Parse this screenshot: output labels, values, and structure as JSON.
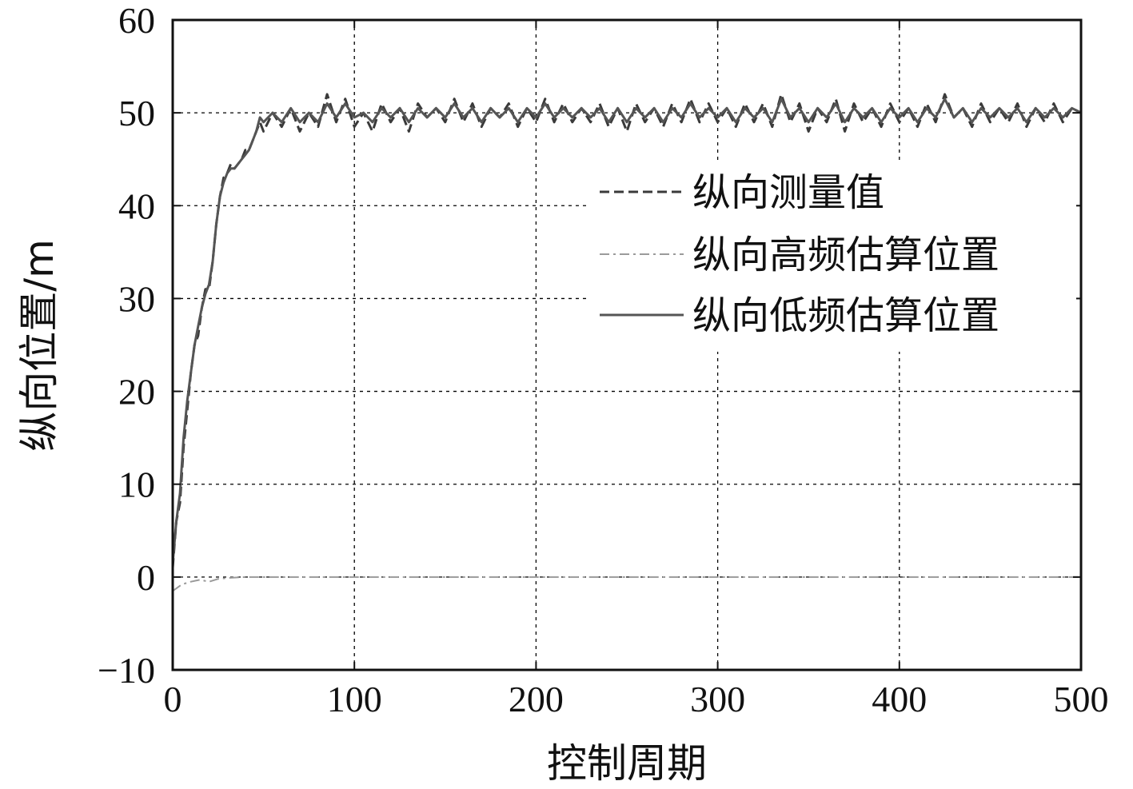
{
  "chart_data": {
    "type": "line",
    "xlabel": "控制周期",
    "ylabel": "纵向位置/m",
    "xlim": [
      0,
      500
    ],
    "ylim": [
      -10,
      60
    ],
    "xticks": [
      0,
      100,
      200,
      300,
      400,
      500
    ],
    "yticks": [
      -10,
      0,
      10,
      20,
      30,
      40,
      50,
      60
    ],
    "xtick_labels": [
      "0",
      "100",
      "200",
      "300",
      "400",
      "500"
    ],
    "ytick_labels": [
      "−10",
      "0",
      "10",
      "20",
      "30",
      "40",
      "50",
      "60"
    ],
    "grid": true,
    "legend_position": "top-right",
    "colors": {
      "measured": "#3a3a3a",
      "high_freq": "#9a9a9a",
      "low_freq": "#555555",
      "grid": "#000000",
      "frame": "#111111"
    },
    "series": [
      {
        "name": "纵向测量值",
        "style": "dashed",
        "points": [
          [
            0,
            1
          ],
          [
            2,
            6
          ],
          [
            4,
            8
          ],
          [
            6,
            14
          ],
          [
            8,
            18
          ],
          [
            10,
            22
          ],
          [
            12,
            25
          ],
          [
            14,
            26
          ],
          [
            16,
            29
          ],
          [
            18,
            31
          ],
          [
            20,
            31
          ],
          [
            22,
            34
          ],
          [
            24,
            38
          ],
          [
            26,
            41
          ],
          [
            28,
            43
          ],
          [
            30,
            43.5
          ],
          [
            32,
            44.5
          ],
          [
            34,
            44
          ],
          [
            36,
            44.5
          ],
          [
            38,
            45
          ],
          [
            40,
            46
          ],
          [
            42,
            46
          ],
          [
            44,
            47
          ],
          [
            46,
            48
          ],
          [
            48,
            49
          ],
          [
            50,
            48
          ],
          [
            55,
            50
          ],
          [
            60,
            48.5
          ],
          [
            65,
            50.5
          ],
          [
            70,
            48
          ],
          [
            75,
            50
          ],
          [
            80,
            48.5
          ],
          [
            85,
            52
          ],
          [
            90,
            49
          ],
          [
            95,
            51.5
          ],
          [
            100,
            48.5
          ],
          [
            105,
            50
          ],
          [
            110,
            48
          ],
          [
            115,
            51
          ],
          [
            120,
            49
          ],
          [
            125,
            50.5
          ],
          [
            130,
            48
          ],
          [
            135,
            51
          ],
          [
            140,
            49.5
          ],
          [
            145,
            50.5
          ],
          [
            150,
            49
          ],
          [
            155,
            51.5
          ],
          [
            160,
            49
          ],
          [
            165,
            51
          ],
          [
            170,
            48.5
          ],
          [
            175,
            50.5
          ],
          [
            180,
            49.5
          ],
          [
            185,
            51
          ],
          [
            190,
            48.5
          ],
          [
            195,
            50.5
          ],
          [
            200,
            49
          ],
          [
            205,
            51.5
          ],
          [
            210,
            49
          ],
          [
            215,
            51
          ],
          [
            220,
            49
          ],
          [
            225,
            50.5
          ],
          [
            230,
            49
          ],
          [
            235,
            51
          ],
          [
            240,
            48.5
          ],
          [
            245,
            50.5
          ],
          [
            250,
            48
          ],
          [
            255,
            51
          ],
          [
            260,
            49
          ],
          [
            265,
            50.5
          ],
          [
            270,
            48.5
          ],
          [
            275,
            51
          ],
          [
            280,
            49
          ],
          [
            285,
            51.5
          ],
          [
            290,
            49
          ],
          [
            295,
            51
          ],
          [
            300,
            49
          ],
          [
            305,
            50.5
          ],
          [
            310,
            48.5
          ],
          [
            315,
            51
          ],
          [
            320,
            49
          ],
          [
            325,
            51
          ],
          [
            330,
            48.5
          ],
          [
            335,
            52
          ],
          [
            340,
            49
          ],
          [
            345,
            51
          ],
          [
            350,
            48
          ],
          [
            355,
            50.5
          ],
          [
            360,
            49
          ],
          [
            365,
            51.5
          ],
          [
            370,
            48
          ],
          [
            375,
            51
          ],
          [
            380,
            49
          ],
          [
            385,
            50.5
          ],
          [
            390,
            48.5
          ],
          [
            395,
            51
          ],
          [
            400,
            49
          ],
          [
            405,
            50.5
          ],
          [
            410,
            48.5
          ],
          [
            415,
            51
          ],
          [
            420,
            49
          ],
          [
            425,
            52
          ],
          [
            430,
            49.5
          ],
          [
            435,
            50.5
          ],
          [
            440,
            48.5
          ],
          [
            445,
            51
          ],
          [
            450,
            49
          ],
          [
            455,
            50.5
          ],
          [
            460,
            49
          ],
          [
            465,
            51
          ],
          [
            470,
            48.5
          ],
          [
            475,
            50.5
          ],
          [
            480,
            49
          ],
          [
            485,
            51
          ],
          [
            490,
            49
          ],
          [
            495,
            50.5
          ],
          [
            500,
            50
          ]
        ]
      },
      {
        "name": "纵向高频估算位置",
        "style": "dash-dot",
        "points": [
          [
            0,
            -1.5
          ],
          [
            5,
            -0.8
          ],
          [
            10,
            -0.5
          ],
          [
            15,
            -0.3
          ],
          [
            20,
            -0.5
          ],
          [
            25,
            -0.2
          ],
          [
            30,
            -0.1
          ],
          [
            40,
            0
          ],
          [
            60,
            0
          ],
          [
            100,
            0
          ],
          [
            200,
            0
          ],
          [
            300,
            0
          ],
          [
            400,
            0
          ],
          [
            500,
            0
          ]
        ]
      },
      {
        "name": "纵向低频估算位置",
        "style": "solid",
        "points": [
          [
            0,
            1.5
          ],
          [
            2,
            6
          ],
          [
            4,
            9
          ],
          [
            6,
            15
          ],
          [
            8,
            19
          ],
          [
            10,
            22
          ],
          [
            12,
            25
          ],
          [
            14,
            27
          ],
          [
            16,
            29
          ],
          [
            18,
            30.5
          ],
          [
            20,
            31.5
          ],
          [
            22,
            34
          ],
          [
            24,
            38
          ],
          [
            26,
            41
          ],
          [
            28,
            42.5
          ],
          [
            30,
            43.5
          ],
          [
            32,
            44
          ],
          [
            34,
            44
          ],
          [
            36,
            44.5
          ],
          [
            38,
            45
          ],
          [
            40,
            45.5
          ],
          [
            42,
            46
          ],
          [
            44,
            47
          ],
          [
            46,
            48
          ],
          [
            48,
            49.5
          ],
          [
            50,
            49
          ],
          [
            55,
            50
          ],
          [
            60,
            49
          ],
          [
            65,
            50.5
          ],
          [
            70,
            49
          ],
          [
            75,
            50
          ],
          [
            80,
            49
          ],
          [
            85,
            51
          ],
          [
            90,
            49.5
          ],
          [
            95,
            51
          ],
          [
            100,
            49.5
          ],
          [
            105,
            50
          ],
          [
            110,
            49
          ],
          [
            115,
            50.5
          ],
          [
            120,
            49.5
          ],
          [
            125,
            50.5
          ],
          [
            130,
            49
          ],
          [
            135,
            50.5
          ],
          [
            140,
            49.5
          ],
          [
            145,
            50.5
          ],
          [
            150,
            49.5
          ],
          [
            155,
            51
          ],
          [
            160,
            49.5
          ],
          [
            165,
            50.5
          ],
          [
            170,
            49
          ],
          [
            175,
            50.5
          ],
          [
            180,
            49.5
          ],
          [
            185,
            50.5
          ],
          [
            190,
            49
          ],
          [
            195,
            50.5
          ],
          [
            200,
            49.5
          ],
          [
            205,
            51
          ],
          [
            210,
            49.5
          ],
          [
            215,
            50.5
          ],
          [
            220,
            49.5
          ],
          [
            225,
            50.5
          ],
          [
            230,
            49.5
          ],
          [
            235,
            50.5
          ],
          [
            240,
            49
          ],
          [
            245,
            50.5
          ],
          [
            250,
            49
          ],
          [
            255,
            50.5
          ],
          [
            260,
            49.5
          ],
          [
            265,
            50.5
          ],
          [
            270,
            49
          ],
          [
            275,
            50.5
          ],
          [
            280,
            49.5
          ],
          [
            285,
            51
          ],
          [
            290,
            49.5
          ],
          [
            295,
            50.5
          ],
          [
            300,
            49.5
          ],
          [
            305,
            50.5
          ],
          [
            310,
            49
          ],
          [
            315,
            50.5
          ],
          [
            320,
            49.5
          ],
          [
            325,
            50.5
          ],
          [
            330,
            49
          ],
          [
            335,
            51.5
          ],
          [
            340,
            49.5
          ],
          [
            345,
            50.5
          ],
          [
            350,
            49
          ],
          [
            355,
            50.5
          ],
          [
            360,
            49.5
          ],
          [
            365,
            51
          ],
          [
            370,
            49
          ],
          [
            375,
            50.5
          ],
          [
            380,
            49.5
          ],
          [
            385,
            50.5
          ],
          [
            390,
            49
          ],
          [
            395,
            50.5
          ],
          [
            400,
            49.5
          ],
          [
            405,
            50.5
          ],
          [
            410,
            49
          ],
          [
            415,
            50.5
          ],
          [
            420,
            49.5
          ],
          [
            425,
            51.5
          ],
          [
            430,
            49.5
          ],
          [
            435,
            50.5
          ],
          [
            440,
            49
          ],
          [
            445,
            50.5
          ],
          [
            450,
            49.5
          ],
          [
            455,
            50.5
          ],
          [
            460,
            49.5
          ],
          [
            465,
            50.5
          ],
          [
            470,
            49
          ],
          [
            475,
            50.5
          ],
          [
            480,
            49.5
          ],
          [
            485,
            50.5
          ],
          [
            490,
            49.5
          ],
          [
            495,
            50.5
          ],
          [
            500,
            50
          ]
        ]
      }
    ]
  }
}
